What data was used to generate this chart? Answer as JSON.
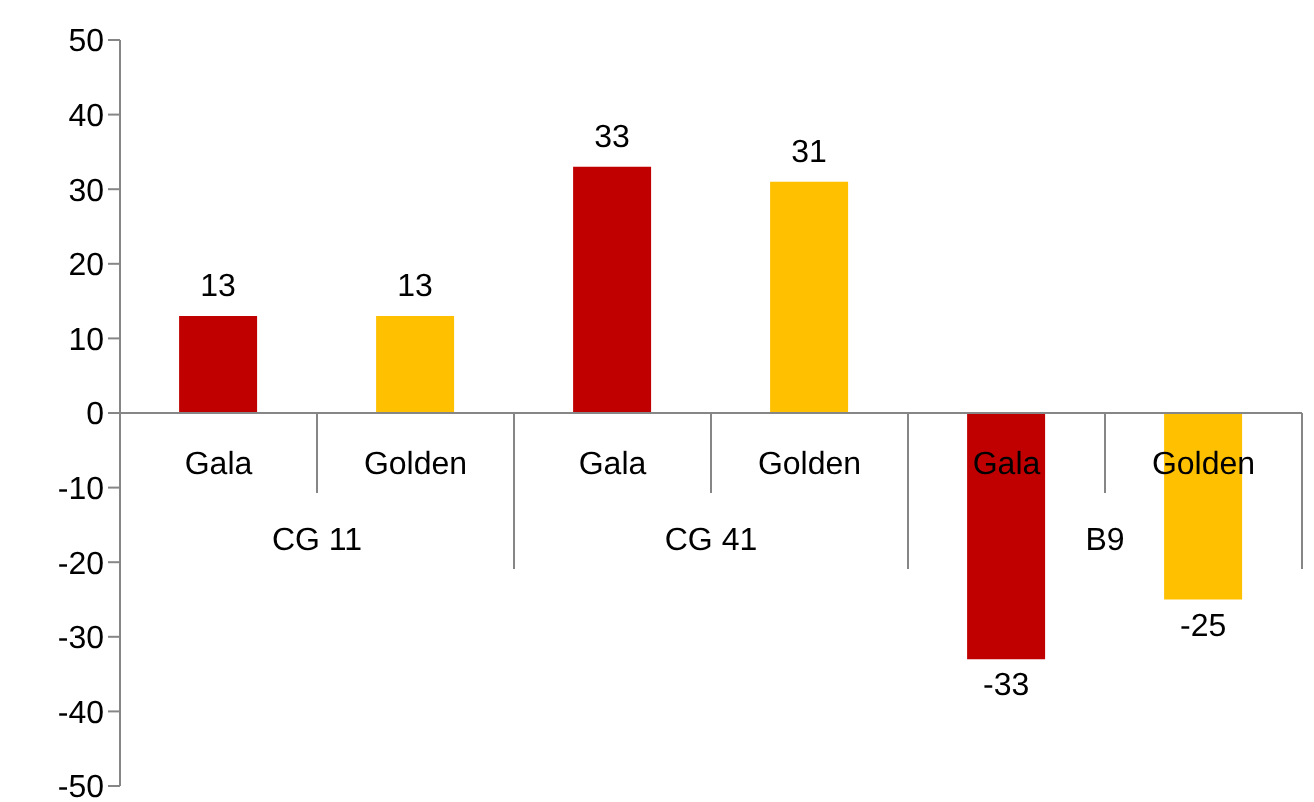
{
  "chart_data": {
    "type": "bar",
    "categories": [
      "Gala",
      "Golden",
      "Gala",
      "Golden",
      "Gala",
      "Golden"
    ],
    "values": [
      13,
      13,
      33,
      31,
      -33,
      -25
    ],
    "colors": [
      "#c00000",
      "#ffc000",
      "#c00000",
      "#ffc000",
      "#c00000",
      "#ffc000"
    ],
    "ylim": [
      -50,
      50
    ],
    "yticks": [
      -50,
      -40,
      -30,
      -20,
      -10,
      0,
      10,
      20,
      30,
      40,
      50
    ],
    "data_labels": true,
    "annotations": [
      "CG 11",
      "CG 41",
      "B9"
    ]
  }
}
